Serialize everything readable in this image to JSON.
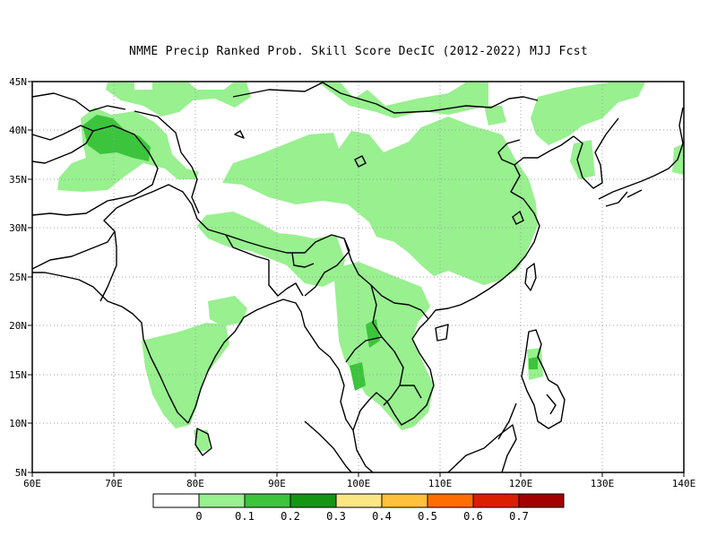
{
  "title": "NMME Precip Ranked Prob. Skill Score DecIC (2012-2022) MJJ Fcst",
  "map": {
    "lon_labels": [
      "60E",
      "70E",
      "80E",
      "90E",
      "100E",
      "110E",
      "120E",
      "130E",
      "140E"
    ],
    "lat_labels": [
      "45N",
      "40N",
      "35N",
      "30N",
      "25N",
      "20N",
      "15N",
      "10N",
      "5N"
    ],
    "colors": {
      "skill_low": "#98f08f",
      "skill_mid": "#3cc43c",
      "coast": "#000000",
      "grid": "#a0a0a0"
    }
  },
  "colorbar": {
    "labels": [
      "0",
      "0.1",
      "0.2",
      "0.3",
      "0.4",
      "0.5",
      "0.6",
      "0.7"
    ],
    "colors": [
      "#ffffff",
      "#98f08f",
      "#3cc43c",
      "#149614",
      "#fae682",
      "#ffc03c",
      "#ff6e00",
      "#dc1e00",
      "#a50000"
    ]
  }
}
